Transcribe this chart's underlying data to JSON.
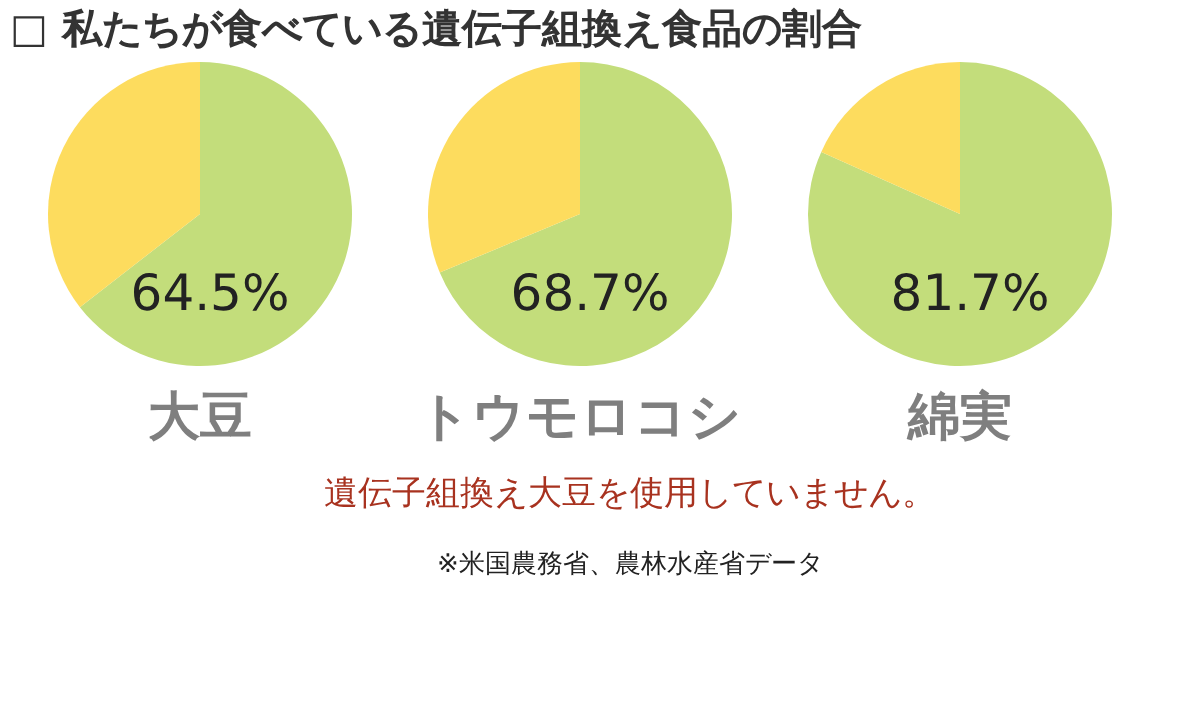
{
  "chart_data": [
    {
      "type": "pie",
      "title": "□ 私たちが食べている遺伝子組換え食品の割合",
      "xlabel": "大豆",
      "categories": [
        null,
        null
      ],
      "values": [
        64.5,
        35.5
      ],
      "colors": [
        "#c3dd7b",
        "#fddc5e"
      ],
      "value_labels": [
        "64.5%",
        null
      ]
    },
    {
      "type": "pie",
      "xlabel": "トウモロコシ",
      "categories": [
        null,
        null
      ],
      "values": [
        68.7,
        31.3
      ],
      "colors": [
        "#c3dd7b",
        "#fddc5e"
      ],
      "value_labels": [
        "68.7%",
        null
      ]
    },
    {
      "type": "pie",
      "xlabel": "綿実",
      "categories": [
        null,
        null
      ],
      "values": [
        81.7,
        18.3
      ],
      "colors": [
        "#c3dd7b",
        "#fddc5e"
      ],
      "value_labels": [
        "81.7%",
        null
      ],
      "annotations": [
        "遺伝子組換え大豆を使用していません。",
        "※米国農務省、農林水産省データ"
      ]
    }
  ]
}
